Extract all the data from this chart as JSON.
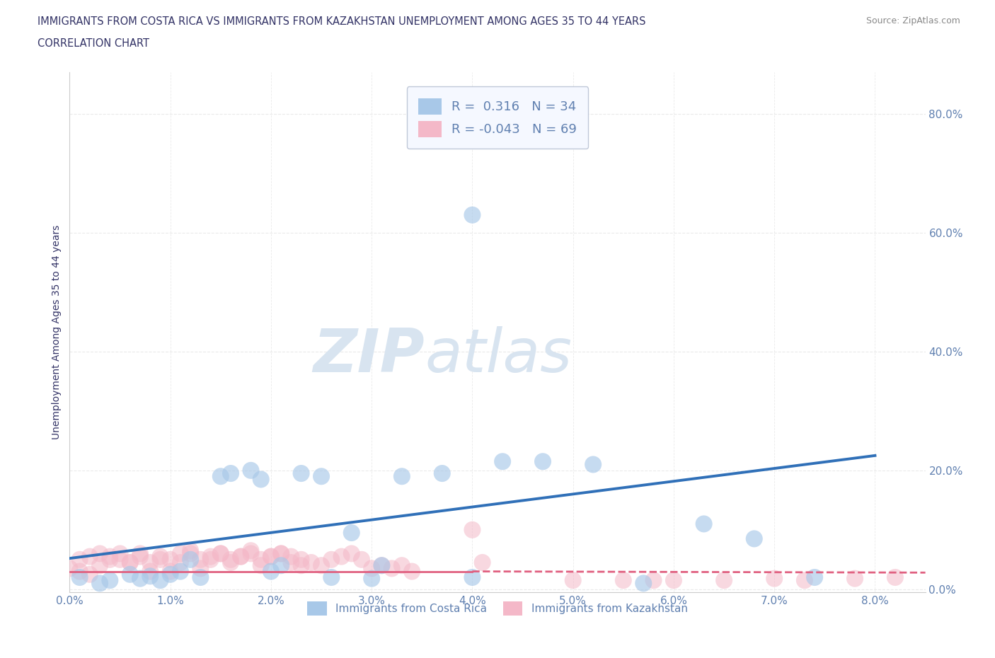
{
  "title_line1": "IMMIGRANTS FROM COSTA RICA VS IMMIGRANTS FROM KAZAKHSTAN UNEMPLOYMENT AMONG AGES 35 TO 44 YEARS",
  "title_line2": "CORRELATION CHART",
  "source": "Source: ZipAtlas.com",
  "ylabel": "Unemployment Among Ages 35 to 44 years",
  "xlim": [
    0.0,
    0.085
  ],
  "ylim": [
    -0.005,
    0.87
  ],
  "xticks": [
    0.0,
    0.01,
    0.02,
    0.03,
    0.04,
    0.05,
    0.06,
    0.07,
    0.08
  ],
  "yticks": [
    0.0,
    0.2,
    0.4,
    0.6,
    0.8
  ],
  "xticklabels": [
    "0.0%",
    "1.0%",
    "2.0%",
    "3.0%",
    "4.0%",
    "5.0%",
    "6.0%",
    "7.0%",
    "8.0%"
  ],
  "yticklabels": [
    "0.0%",
    "20.0%",
    "40.0%",
    "60.0%",
    "80.0%"
  ],
  "costa_rica_R": 0.316,
  "costa_rica_N": 34,
  "kazakhstan_R": -0.043,
  "kazakhstan_N": 69,
  "blue_color": "#a8c8e8",
  "pink_color": "#f4b8c8",
  "blue_line_color": "#3070b8",
  "pink_line_color": "#e06080",
  "title_color": "#505090",
  "tick_color": "#6080b0",
  "watermark_color": "#d8e4f0",
  "grid_color": "#e8e8e8",
  "grid_style_h": "--",
  "background_color": "#ffffff",
  "legend_facecolor": "#f5f8ff",
  "legend_edgecolor": "#c0c8d8",
  "blue_trend_x0": 0.0,
  "blue_trend_y0": 0.052,
  "blue_trend_x1": 0.08,
  "blue_trend_y1": 0.225,
  "pink_trend_x0": 0.0,
  "pink_trend_y0": 0.03,
  "pink_trend_x1": 0.04,
  "pink_trend_y1": 0.03,
  "pink_trend_x1_dashed": 0.085,
  "pink_trend_y1_dashed": 0.028,
  "costa_rica_scatter_x": [
    0.001,
    0.003,
    0.004,
    0.006,
    0.007,
    0.008,
    0.009,
    0.01,
    0.011,
    0.012,
    0.013,
    0.015,
    0.016,
    0.018,
    0.019,
    0.02,
    0.021,
    0.023,
    0.025,
    0.026,
    0.028,
    0.03,
    0.031,
    0.033,
    0.037,
    0.04,
    0.043,
    0.047,
    0.052,
    0.057,
    0.063,
    0.068,
    0.074,
    0.04
  ],
  "costa_rica_scatter_y": [
    0.02,
    0.01,
    0.015,
    0.025,
    0.018,
    0.022,
    0.015,
    0.025,
    0.03,
    0.05,
    0.02,
    0.19,
    0.195,
    0.2,
    0.185,
    0.03,
    0.04,
    0.195,
    0.19,
    0.02,
    0.095,
    0.018,
    0.04,
    0.19,
    0.195,
    0.02,
    0.215,
    0.215,
    0.21,
    0.01,
    0.11,
    0.085,
    0.02,
    0.63
  ],
  "kazakhstan_scatter_x": [
    0.0,
    0.001,
    0.002,
    0.003,
    0.004,
    0.005,
    0.006,
    0.007,
    0.008,
    0.009,
    0.01,
    0.011,
    0.012,
    0.013,
    0.014,
    0.015,
    0.016,
    0.017,
    0.018,
    0.019,
    0.02,
    0.021,
    0.022,
    0.023,
    0.001,
    0.002,
    0.003,
    0.004,
    0.005,
    0.006,
    0.007,
    0.008,
    0.009,
    0.01,
    0.011,
    0.012,
    0.013,
    0.014,
    0.015,
    0.016,
    0.017,
    0.018,
    0.019,
    0.02,
    0.021,
    0.022,
    0.023,
    0.024,
    0.025,
    0.026,
    0.027,
    0.028,
    0.029,
    0.03,
    0.031,
    0.032,
    0.033,
    0.034,
    0.04,
    0.041,
    0.05,
    0.055,
    0.058,
    0.06,
    0.065,
    0.07,
    0.073,
    0.078,
    0.082
  ],
  "kazakhstan_scatter_y": [
    0.035,
    0.03,
    0.025,
    0.04,
    0.05,
    0.06,
    0.045,
    0.055,
    0.03,
    0.05,
    0.03,
    0.045,
    0.06,
    0.035,
    0.05,
    0.06,
    0.045,
    0.055,
    0.065,
    0.04,
    0.055,
    0.06,
    0.045,
    0.04,
    0.05,
    0.055,
    0.06,
    0.055,
    0.05,
    0.045,
    0.06,
    0.045,
    0.055,
    0.05,
    0.06,
    0.065,
    0.05,
    0.055,
    0.06,
    0.05,
    0.055,
    0.06,
    0.05,
    0.055,
    0.06,
    0.055,
    0.05,
    0.045,
    0.04,
    0.05,
    0.055,
    0.06,
    0.05,
    0.035,
    0.04,
    0.035,
    0.04,
    0.03,
    0.1,
    0.045,
    0.015,
    0.015,
    0.015,
    0.015,
    0.015,
    0.018,
    0.015,
    0.018,
    0.02
  ]
}
